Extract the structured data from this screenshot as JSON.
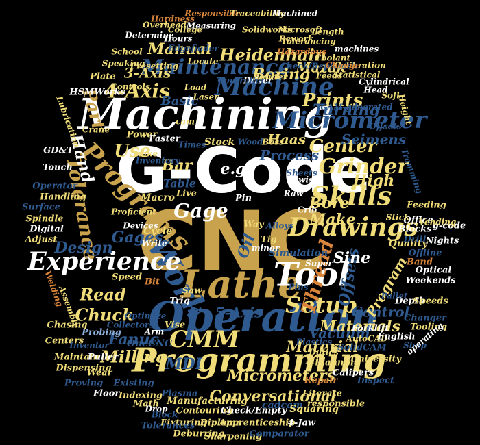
{
  "colors": {
    "background": "#000000",
    "white": "#ffffff",
    "gold": "#c9a24e",
    "yellow": "#f0dc78",
    "blue": "#2f5a8f",
    "light_blue": "#8fb0d8",
    "orange": "#d8843a"
  },
  "words": [
    {
      "text": "CNC",
      "color": "gold"
    },
    {
      "text": "G-Code",
      "color": "white"
    },
    {
      "text": "Machining",
      "color": "white"
    },
    {
      "text": "Operation",
      "color": "blue"
    },
    {
      "text": "Lathe",
      "color": "gold"
    },
    {
      "text": "Tool",
      "color": "white"
    },
    {
      "text": "Work",
      "color": "blue"
    },
    {
      "text": "Programming",
      "color": "yellow"
    },
    {
      "text": "Experience",
      "color": "white"
    },
    {
      "text": "Machine",
      "color": "blue"
    },
    {
      "text": "Drawings",
      "color": "yellow"
    },
    {
      "text": "Skills",
      "color": "yellow"
    },
    {
      "text": "Programs",
      "color": "gold"
    },
    {
      "text": "Setup",
      "color": "yellow"
    },
    {
      "text": "Micrometer",
      "color": "blue"
    },
    {
      "text": "Maintenance",
      "color": "blue"
    },
    {
      "text": "Grinder",
      "color": "yellow"
    },
    {
      "text": "Tolerance",
      "color": "gold"
    },
    {
      "text": "CMM",
      "color": "yellow"
    },
    {
      "text": "Thread",
      "color": "orange"
    },
    {
      "text": "Offsets",
      "color": "blue"
    },
    {
      "text": "Heidenhain",
      "color": "yellow"
    },
    {
      "text": "Center",
      "color": "yellow"
    },
    {
      "text": "Gage",
      "color": "white"
    },
    {
      "text": "4-Axis",
      "color": "yellow"
    },
    {
      "text": "Part",
      "color": "gold"
    },
    {
      "text": "Hand",
      "color": "white"
    },
    {
      "text": "Prints",
      "color": "yellow"
    },
    {
      "text": "Use",
      "color": "yellow"
    },
    {
      "text": "Read",
      "color": "yellow"
    },
    {
      "text": "Chuck",
      "color": "yellow"
    },
    {
      "text": "Conversational",
      "color": "yellow"
    },
    {
      "text": "Micrometers",
      "color": "yellow"
    },
    {
      "text": "Milling",
      "color": "yellow"
    },
    {
      "text": "Fanuc",
      "color": "blue"
    },
    {
      "text": "Material",
      "color": "yellow"
    },
    {
      "text": "Materials",
      "color": "yellow"
    },
    {
      "text": "Control",
      "color": "blue"
    },
    {
      "text": "Vacuum",
      "color": "blue"
    },
    {
      "text": "Design",
      "color": "blue"
    },
    {
      "text": "Gages",
      "color": "blue"
    },
    {
      "text": "Manual",
      "color": "yellow"
    },
    {
      "text": "Boring",
      "color": "yellow"
    },
    {
      "text": "Mazak",
      "color": "yellow"
    },
    {
      "text": "Turning",
      "color": "blue"
    },
    {
      "text": "Haas",
      "color": "yellow"
    },
    {
      "text": "Process",
      "color": "blue"
    },
    {
      "text": "Seimens",
      "color": "blue"
    },
    {
      "text": "High",
      "color": "yellow"
    },
    {
      "text": "Bore",
      "color": "yellow"
    },
    {
      "text": "Make",
      "color": "yellow"
    },
    {
      "text": "Sine",
      "color": "white"
    },
    {
      "text": "Program",
      "color": "yellow"
    },
    {
      "text": "5-Axis",
      "color": "blue"
    },
    {
      "text": "Bar",
      "color": "yellow"
    },
    {
      "text": "MDI",
      "color": "blue"
    },
    {
      "text": "Table",
      "color": "blue"
    },
    {
      "text": "Basic",
      "color": "blue"
    },
    {
      "text": "3-Axis",
      "color": "yellow"
    },
    {
      "text": "e.g",
      "color": "white"
    },
    {
      "text": "Oil",
      "color": "blue"
    },
    {
      "text": "Quality",
      "color": "yellow"
    },
    {
      "text": "Stock",
      "color": "yellow"
    },
    {
      "text": "Cycle",
      "color": "yellow"
    },
    {
      "text": "Macro",
      "color": "yellow"
    },
    {
      "text": "Pin",
      "color": "white"
    },
    {
      "text": "Way",
      "color": "yellow"
    },
    {
      "text": "Tig",
      "color": "yellow"
    },
    {
      "text": "Simulation",
      "color": "blue"
    },
    {
      "text": "Speed",
      "color": "yellow"
    },
    {
      "text": "Bit",
      "color": "orange"
    },
    {
      "text": "Trig",
      "color": "white"
    },
    {
      "text": "Saw",
      "color": "yellow"
    },
    {
      "text": "Vise",
      "color": "yellow"
    },
    {
      "text": "Probing",
      "color": "light_blue"
    },
    {
      "text": "Chasing",
      "color": "yellow"
    },
    {
      "text": "Centers",
      "color": "yellow"
    },
    {
      "text": "Maintain",
      "color": "yellow"
    },
    {
      "text": "Puller",
      "color": "white"
    },
    {
      "text": "Dispensing",
      "color": "yellow"
    },
    {
      "text": "Wear",
      "color": "yellow"
    },
    {
      "text": "Proving",
      "color": "blue"
    },
    {
      "text": "OneCNC",
      "color": "blue"
    },
    {
      "text": "Floor",
      "color": "white"
    },
    {
      "text": "Indexing",
      "color": "yellow"
    },
    {
      "text": "Existing",
      "color": "blue"
    },
    {
      "text": "Math",
      "color": "yellow"
    },
    {
      "text": "Plasma",
      "color": "blue"
    },
    {
      "text": "Drop",
      "color": "white"
    },
    {
      "text": "Block",
      "color": "blue"
    },
    {
      "text": "Manufacturing",
      "color": "yellow"
    },
    {
      "text": "Contouring",
      "color": "yellow"
    },
    {
      "text": "Fixturing",
      "color": "yellow"
    },
    {
      "text": "Diploma",
      "color": "yellow"
    },
    {
      "text": "Tolerances",
      "color": "blue"
    },
    {
      "text": "Deburring",
      "color": "yellow"
    },
    {
      "text": "Check/Empty",
      "color": "white"
    },
    {
      "text": "Apprenticeship",
      "color": "yellow"
    },
    {
      "text": "Sharpening",
      "color": "yellow"
    },
    {
      "text": "Comparator",
      "color": "blue"
    },
    {
      "text": "cadcam",
      "color": "blue"
    },
    {
      "text": "Squaring",
      "color": "yellow"
    },
    {
      "text": "4-Jaw",
      "color": "white"
    },
    {
      "text": "Literate",
      "color": "yellow"
    },
    {
      "text": "responsible",
      "color": "yellow"
    },
    {
      "text": "Repair",
      "color": "orange"
    },
    {
      "text": "Calipers",
      "color": "white"
    },
    {
      "text": "Inspect",
      "color": "blue"
    },
    {
      "text": "Mill",
      "color": "yellow"
    },
    {
      "text": "Planning",
      "color": "yellow"
    },
    {
      "text": "University",
      "color": "yellow"
    },
    {
      "text": "SolidCAM",
      "color": "blue"
    },
    {
      "text": "Plastics",
      "color": "blue"
    },
    {
      "text": "Duties",
      "color": "yellow"
    },
    {
      "text": "AutoCAD",
      "color": "yellow"
    },
    {
      "text": "English",
      "color": "white"
    },
    {
      "text": "Shop",
      "color": "blue"
    },
    {
      "text": "Forklift",
      "color": "white"
    },
    {
      "text": "Changer",
      "color": "blue"
    },
    {
      "text": "Tooling",
      "color": "yellow"
    },
    {
      "text": "Depth",
      "color": "white"
    },
    {
      "text": "Speeds",
      "color": "yellow"
    },
    {
      "text": "Weekends",
      "color": "white"
    },
    {
      "text": "Pallet",
      "color": "blue"
    },
    {
      "text": "Optical",
      "color": "white"
    },
    {
      "text": "Band",
      "color": "orange"
    },
    {
      "text": "Offline",
      "color": "blue"
    },
    {
      "text": "Drill",
      "color": "blue"
    },
    {
      "text": "Nights",
      "color": "white"
    },
    {
      "text": "g-code",
      "color": "white"
    },
    {
      "text": "Office",
      "color": "white"
    },
    {
      "text": "Blocks",
      "color": "white"
    },
    {
      "text": "Feeding",
      "color": "yellow"
    },
    {
      "text": "Stick",
      "color": "yellow"
    },
    {
      "text": "Pins",
      "color": "blue"
    },
    {
      "text": "Super",
      "color": "white"
    },
    {
      "text": "Alloys",
      "color": "blue"
    },
    {
      "text": "Crib",
      "color": "white"
    },
    {
      "text": "Raw",
      "color": "white"
    },
    {
      "text": "Swiss",
      "color": "white"
    },
    {
      "text": "Sheets",
      "color": "blue"
    },
    {
      "text": "Live",
      "color": "yellow"
    },
    {
      "text": "Handling",
      "color": "yellow"
    },
    {
      "text": "Operator",
      "color": "blue"
    },
    {
      "text": "Surface",
      "color": "blue"
    },
    {
      "text": "Spindle",
      "color": "yellow"
    },
    {
      "text": "Digital",
      "color": "white"
    },
    {
      "text": "Adjust",
      "color": "yellow"
    },
    {
      "text": "Touch",
      "color": "white"
    },
    {
      "text": "GD&T",
      "color": "white"
    },
    {
      "text": "Power",
      "color": "yellow"
    },
    {
      "text": "Faster",
      "color": "white"
    },
    {
      "text": "Times",
      "color": "blue"
    },
    {
      "text": "make",
      "color": "yellow"
    },
    {
      "text": "Inventory",
      "color": "blue"
    },
    {
      "text": "Crane",
      "color": "yellow"
    },
    {
      "text": "HSMWorks",
      "color": "white"
    },
    {
      "text": "Plate",
      "color": "yellow"
    },
    {
      "text": "Controls",
      "color": "yellow"
    },
    {
      "text": "Presetting",
      "color": "yellow"
    },
    {
      "text": "Speaking",
      "color": "yellow"
    },
    {
      "text": "School",
      "color": "yellow"
    },
    {
      "text": "Overhead",
      "color": "yellow"
    },
    {
      "text": "Determine",
      "color": "white"
    },
    {
      "text": "Hours",
      "color": "white"
    },
    {
      "text": "College",
      "color": "yellow"
    },
    {
      "text": "Hardness",
      "color": "orange"
    },
    {
      "text": "Responsible",
      "color": "orange"
    },
    {
      "text": "Traceability",
      "color": "yellow"
    },
    {
      "text": "Machined",
      "color": "white"
    },
    {
      "text": "Measuring",
      "color": "white"
    },
    {
      "text": "Solidworks",
      "color": "yellow"
    },
    {
      "text": "Microsoft",
      "color": "yellow"
    },
    {
      "text": "Length",
      "color": "yellow"
    },
    {
      "text": "Rework",
      "color": "yellow"
    },
    {
      "text": "Tolerancing",
      "color": "yellow"
    },
    {
      "text": "Edgefinder",
      "color": "blue"
    },
    {
      "text": "Locate",
      "color": "yellow"
    },
    {
      "text": "Hazardous",
      "color": "orange"
    },
    {
      "text": "Coolant",
      "color": "yellow"
    },
    {
      "text": "machines",
      "color": "white"
    },
    {
      "text": "Check/Replenish",
      "color": "blue"
    },
    {
      "text": "Feeds",
      "color": "yellow"
    },
    {
      "text": "Calibration",
      "color": "yellow"
    },
    {
      "text": "Change",
      "color": "orange"
    },
    {
      "text": "Router",
      "color": "yellow"
    },
    {
      "text": "Driver",
      "color": "white"
    },
    {
      "text": "Controller",
      "color": "blue"
    },
    {
      "text": "Statistical",
      "color": "yellow"
    },
    {
      "text": "Head",
      "color": "white"
    },
    {
      "text": "Cylindrical",
      "color": "white"
    },
    {
      "text": "Soft",
      "color": "yellow"
    },
    {
      "text": "Height",
      "color": "yellow"
    },
    {
      "text": "Load",
      "color": "yellow"
    },
    {
      "text": "Laser",
      "color": "yellow"
    },
    {
      "text": "cam",
      "color": "yellow"
    },
    {
      "text": "CAM-generated",
      "color": "blue"
    },
    {
      "text": "Wood",
      "color": "blue"
    },
    {
      "text": "Boss",
      "color": "yellow"
    },
    {
      "text": "Offsets",
      "color": "blue"
    },
    {
      "text": "Tramming",
      "color": "blue"
    },
    {
      "text": "minor",
      "color": "white"
    },
    {
      "text": "Devices",
      "color": "white"
    },
    {
      "text": "Write",
      "color": "white"
    },
    {
      "text": "Proficient",
      "color": "yellow"
    },
    {
      "text": "Welding",
      "color": "orange"
    },
    {
      "text": "Assembly",
      "color": "yellow"
    },
    {
      "text": "Optimize",
      "color": "blue"
    },
    {
      "text": "Arm",
      "color": "white"
    },
    {
      "text": "Collectors",
      "color": "blue"
    },
    {
      "text": "Inventor",
      "color": "blue"
    },
    {
      "text": "Vending",
      "color": "yellow"
    },
    {
      "text": "Lubrication",
      "color": "yellow"
    },
    {
      "text": "operating",
      "color": "white"
    }
  ]
}
